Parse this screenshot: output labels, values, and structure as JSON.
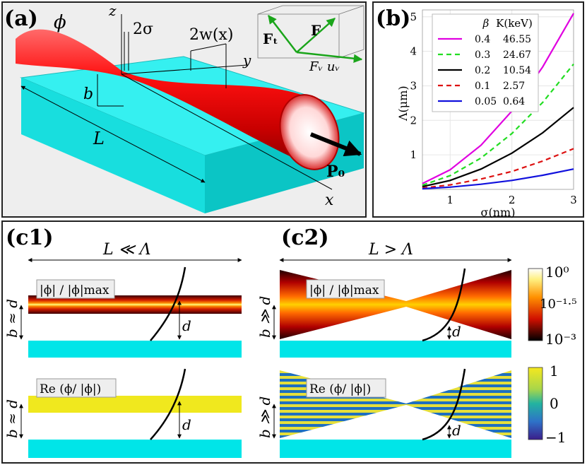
{
  "panel_a": {
    "label": "(a)",
    "beam_symbol": "ϕ",
    "z_axis": "z",
    "y_axis": "y",
    "x_axis": "x",
    "waist_label": "2σ",
    "width_label": "2w(x)",
    "height_label": "b",
    "length_label": "L",
    "momentum_label": "P₀",
    "force_total": "F",
    "force_t": "Fₜ",
    "force_v": "Fᵥ uᵥ"
  },
  "panel_b": {
    "label": "(b)"
  },
  "chart_data": {
    "type": "line",
    "xlabel": "σ(nm)",
    "ylabel": "Λ(μm)",
    "xlim": [
      0.55,
      3.0
    ],
    "ylim": [
      0,
      5.2
    ],
    "xticks": [
      "1",
      "2",
      "3"
    ],
    "yticks": [
      "1",
      "2",
      "3",
      "4",
      "5"
    ],
    "grid": true,
    "legend_position": "top-left",
    "legend_headers": [
      "β",
      "K(keV)"
    ],
    "x": [
      0.55,
      1.0,
      1.5,
      2.0,
      2.5,
      3.0
    ],
    "series": [
      {
        "name": "0.4",
        "beta": "0.4",
        "K": "46.55",
        "color": "#e000e0",
        "dash": "solid",
        "values": [
          0.17,
          0.57,
          1.28,
          2.27,
          3.55,
          5.1
        ]
      },
      {
        "name": "0.3",
        "beta": "0.3",
        "K": "24.67",
        "color": "#22dd22",
        "dash": "dashed",
        "values": [
          0.12,
          0.4,
          0.91,
          1.62,
          2.52,
          3.63
        ]
      },
      {
        "name": "0.2",
        "beta": "0.2",
        "K": "10.54",
        "color": "#000000",
        "dash": "solid",
        "values": [
          0.08,
          0.26,
          0.59,
          1.05,
          1.64,
          2.37
        ]
      },
      {
        "name": "0.1",
        "beta": "0.1",
        "K": "2.57",
        "color": "#dd1111",
        "dash": "dashed",
        "values": [
          0.04,
          0.13,
          0.3,
          0.52,
          0.82,
          1.18
        ]
      },
      {
        "name": "0.05",
        "beta": "0.05",
        "K": "0.64",
        "color": "#1111dd",
        "dash": "solid",
        "values": [
          0.02,
          0.065,
          0.15,
          0.26,
          0.41,
          0.59
        ]
      }
    ]
  },
  "panel_c1": {
    "label": "(c1)",
    "title": "L ≪ Λ",
    "box_top": "|ϕ| / |ϕ|max",
    "box_bottom": "Re (ϕ/ |ϕ|)",
    "height_label": "b ≈ d",
    "d_label": "d"
  },
  "panel_c2": {
    "label": "(c2)",
    "title": "L > Λ",
    "box_top": "|ϕ| / |ϕ|max",
    "box_bottom": "Re (ϕ/ |ϕ|)",
    "height_label": "b ≫ d",
    "d_label": "d"
  },
  "colorbar_top": {
    "max": "10⁰",
    "mid": "10⁻¹·⁵",
    "min": "10⁻³"
  },
  "colorbar_bottom": {
    "max": "1",
    "mid": "0",
    "min": "−1"
  }
}
